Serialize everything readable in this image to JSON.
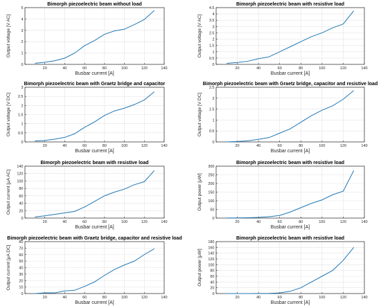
{
  "chart_data": [
    {
      "type": "line",
      "title": "Bimorph piezoelectric beam without load",
      "xlabel": "Busbar current [A]",
      "ylabel": "Output voltage [V AC]",
      "xlim": [
        0,
        140
      ],
      "ylim": [
        0,
        5
      ],
      "xticks": [
        0,
        20,
        40,
        60,
        80,
        100,
        120,
        140
      ],
      "yticks": [
        0,
        1,
        2,
        3,
        4,
        5
      ],
      "grid": true,
      "series": [
        {
          "x": [
            10,
            20,
            30,
            40,
            50,
            60,
            70,
            80,
            90,
            100,
            110,
            120,
            130
          ],
          "y": [
            0.1,
            0.18,
            0.32,
            0.55,
            1.0,
            1.65,
            2.1,
            2.65,
            2.95,
            3.1,
            3.5,
            3.95,
            4.75
          ]
        }
      ],
      "color": "#1f77b4"
    },
    {
      "type": "line",
      "title": "Bimorph piezoelectric beam with resistive load",
      "xlabel": "Busbar current [A]",
      "ylabel": "Output voltage [V AC]",
      "xlim": [
        0,
        140
      ],
      "ylim": [
        0,
        4.5
      ],
      "xticks": [
        0,
        20,
        40,
        60,
        80,
        100,
        120,
        140
      ],
      "yticks": [
        0,
        0.5,
        1,
        1.5,
        2,
        2.5,
        3,
        3.5,
        4,
        4.5
      ],
      "grid": true,
      "series": [
        {
          "x": [
            10,
            20,
            30,
            40,
            50,
            60,
            70,
            80,
            90,
            100,
            110,
            120,
            130
          ],
          "y": [
            0.08,
            0.15,
            0.25,
            0.45,
            0.6,
            1.0,
            1.4,
            1.8,
            2.2,
            2.5,
            2.9,
            3.2,
            4.25
          ]
        }
      ],
      "color": "#1f77b4"
    },
    {
      "type": "line",
      "title": "Bimorph piezoelectric beam with Graetz bridge and capacitor",
      "xlabel": "Busbar current [A]",
      "ylabel": "Output voltage [V DC]",
      "xlim": [
        0,
        140
      ],
      "ylim": [
        0,
        3
      ],
      "xticks": [
        0,
        20,
        40,
        60,
        80,
        100,
        120,
        140
      ],
      "yticks": [
        0,
        0.5,
        1,
        1.5,
        2,
        2.5,
        3
      ],
      "grid": true,
      "series": [
        {
          "x": [
            10,
            20,
            30,
            40,
            50,
            60,
            70,
            80,
            90,
            100,
            110,
            120,
            130
          ],
          "y": [
            0.05,
            0.08,
            0.15,
            0.25,
            0.45,
            0.8,
            1.1,
            1.45,
            1.7,
            1.85,
            2.05,
            2.3,
            2.75
          ]
        }
      ],
      "color": "#1f77b4"
    },
    {
      "type": "line",
      "title": "Bimorph piezoelectric beam with Graetz bridge, capacitor and resistive load",
      "xlabel": "Busbar current [A]",
      "ylabel": "Output voltage [V DC]",
      "xlim": [
        0,
        140
      ],
      "ylim": [
        0,
        2.5
      ],
      "xticks": [
        0,
        20,
        40,
        60,
        80,
        100,
        120,
        140
      ],
      "yticks": [
        0,
        0.5,
        1,
        1.5,
        2,
        2.5
      ],
      "grid": true,
      "series": [
        {
          "x": [
            10,
            20,
            30,
            40,
            50,
            60,
            70,
            80,
            90,
            100,
            110,
            120,
            130
          ],
          "y": [
            0.0,
            0.02,
            0.05,
            0.12,
            0.2,
            0.4,
            0.6,
            0.9,
            1.2,
            1.45,
            1.65,
            1.95,
            2.35
          ]
        }
      ],
      "color": "#1f77b4"
    },
    {
      "type": "line",
      "title": "Bimorph piezoelectric beam with resistive load",
      "xlabel": "Busbar current [A]",
      "ylabel": "Output current [μA AC]",
      "xlim": [
        0,
        140
      ],
      "ylim": [
        0,
        140
      ],
      "xticks": [
        0,
        20,
        40,
        60,
        80,
        100,
        120,
        140
      ],
      "yticks": [
        0,
        20,
        40,
        60,
        80,
        100,
        120,
        140
      ],
      "grid": true,
      "series": [
        {
          "x": [
            10,
            20,
            30,
            40,
            50,
            60,
            70,
            80,
            90,
            100,
            110,
            120,
            130
          ],
          "y": [
            3,
            6,
            10,
            14,
            18,
            30,
            45,
            60,
            70,
            78,
            90,
            98,
            128
          ]
        }
      ],
      "color": "#1f77b4"
    },
    {
      "type": "line",
      "title": "Bimorph piezoelectric beam with resistive load",
      "xlabel": "Busbar current [A]",
      "ylabel": "Output power [μW]",
      "xlim": [
        0,
        140
      ],
      "ylim": [
        0,
        300
      ],
      "xticks": [
        0,
        20,
        40,
        60,
        80,
        100,
        120,
        140
      ],
      "yticks": [
        0,
        50,
        100,
        150,
        200,
        250,
        300
      ],
      "grid": true,
      "series": [
        {
          "x": [
            10,
            20,
            30,
            40,
            50,
            60,
            70,
            80,
            90,
            100,
            110,
            120,
            130
          ],
          "y": [
            0.5,
            1,
            2,
            4,
            8,
            15,
            35,
            60,
            85,
            105,
            135,
            155,
            275
          ]
        }
      ],
      "color": "#1f77b4"
    },
    {
      "type": "line",
      "title": "Bimorph piezoelectric beam with Graetz bridge, capacitor and resistive load",
      "xlabel": "Busbar current [A]",
      "ylabel": "Output current [μA DC]",
      "xlim": [
        0,
        140
      ],
      "ylim": [
        0,
        80
      ],
      "xticks": [
        0,
        20,
        40,
        60,
        80,
        100,
        120,
        140
      ],
      "yticks": [
        0,
        10,
        20,
        30,
        40,
        50,
        60,
        70,
        80
      ],
      "grid": true,
      "series": [
        {
          "x": [
            10,
            20,
            30,
            40,
            50,
            60,
            70,
            80,
            90,
            100,
            110,
            120,
            130
          ],
          "y": [
            0,
            1,
            1,
            4,
            5,
            11,
            18,
            28,
            37,
            44,
            50,
            60,
            69
          ]
        }
      ],
      "color": "#1f77b4"
    },
    {
      "type": "line",
      "title": "Bimorph piezoelectric beam with resistive load",
      "xlabel": "Busbar current [A]",
      "ylabel": "Output power [μW]",
      "xlim": [
        0,
        140
      ],
      "ylim": [
        0,
        180
      ],
      "xticks": [
        0,
        20,
        40,
        60,
        80,
        100,
        120,
        140
      ],
      "yticks": [
        0,
        20,
        40,
        60,
        80,
        100,
        120,
        140,
        160,
        180
      ],
      "grid": true,
      "series": [
        {
          "x": [
            10,
            20,
            30,
            40,
            50,
            60,
            70,
            80,
            90,
            100,
            110,
            120,
            130
          ],
          "y": [
            0,
            0,
            0,
            0.2,
            0.5,
            2,
            8,
            20,
            40,
            60,
            80,
            115,
            160
          ]
        }
      ],
      "color": "#1f77b4"
    }
  ]
}
